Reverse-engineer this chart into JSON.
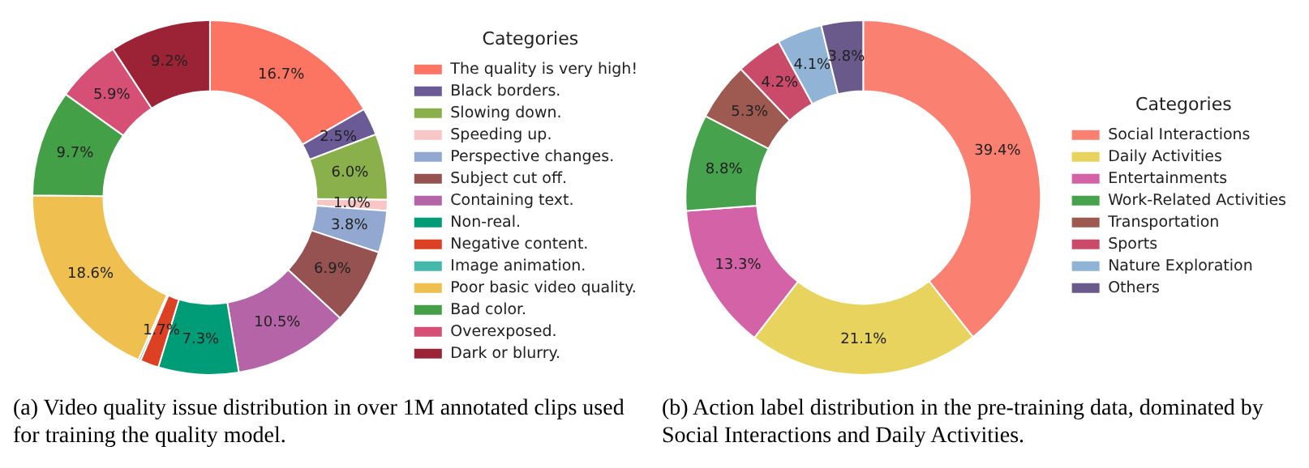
{
  "chart_data": [
    {
      "type": "donut",
      "legend": "right",
      "legend_title": "Categories",
      "categories": [
        "The quality is very high!",
        "Black borders.",
        "Slowing down.",
        "Speeding up.",
        "Perspective changes.",
        "Subject cut off.",
        "Containing text.",
        "Non-real.",
        "Negative content.",
        "Image animation.",
        "Poor basic video quality.",
        "Bad color.",
        "Overexposed.",
        "Dark or blurry."
      ],
      "values": [
        16.7,
        2.5,
        6.0,
        1.0,
        3.8,
        6.9,
        10.5,
        7.3,
        1.7,
        0.2,
        18.6,
        9.7,
        5.9,
        9.2
      ],
      "value_labels": [
        "16.7%",
        "2.5%",
        "6.0%",
        "1.0%",
        "3.8%",
        "6.9%",
        "10.5%",
        "7.3%",
        "1.7%",
        null,
        "18.6%",
        "9.7%",
        "5.9%",
        "9.2%"
      ],
      "colors": [
        "#fc7563",
        "#6a5a96",
        "#8ab04c",
        "#f7c6c5",
        "#92a8d1",
        "#955251",
        "#b565a7",
        "#009b77",
        "#dd4124",
        "#45b8ac",
        "#efc050",
        "#44a046",
        "#d65076",
        "#9b2335"
      ],
      "annotations": [
        "(a) Video quality issue distribution in over 1M annotated clips used for training the quality model."
      ]
    },
    {
      "type": "donut",
      "legend": "right",
      "legend_title": "Categories",
      "categories": [
        "Social Interactions",
        "Daily Activities",
        "Entertainments",
        "Work-Related Activities",
        "Transportation",
        "Sports",
        "Nature Exploration",
        "Others"
      ],
      "values": [
        39.4,
        21.1,
        13.3,
        8.8,
        5.3,
        4.2,
        4.1,
        3.8
      ],
      "value_labels": [
        "39.4%",
        "21.1%",
        "13.3%",
        "8.8%",
        "5.3%",
        "4.2%",
        "4.1%",
        "3.8%"
      ],
      "colors": [
        "#fa8072",
        "#e8d35e",
        "#d462a6",
        "#46a24d",
        "#9e5a50",
        "#c94a69",
        "#91b4d6",
        "#6a5a8c"
      ],
      "annotations": [
        "(b) Action label distribution in the pre-training data, dominated by Social Interactions and Daily Activities."
      ]
    }
  ]
}
